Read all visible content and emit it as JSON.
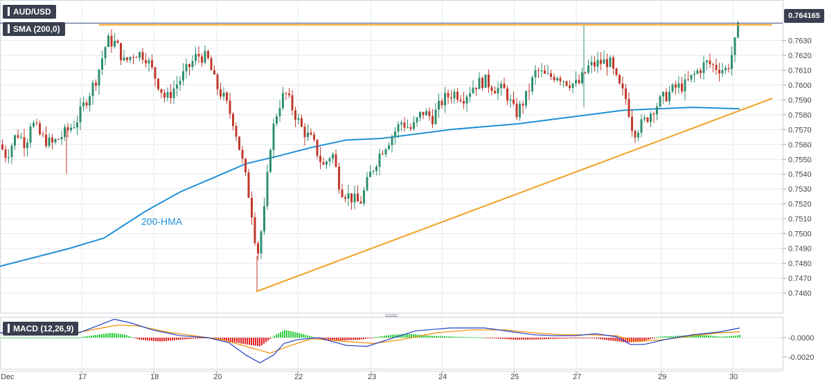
{
  "header": {
    "symbol": "AUD/USD",
    "indicator_label": "SMA (200,0)",
    "macd_label": "MACD (12,26,9)",
    "last_price": "0.764165"
  },
  "annotations": {
    "hma": "200-HMA"
  },
  "colors": {
    "background": "#ffffff",
    "grid": "#e6e8ee",
    "bull_candle": "#2f8f6f",
    "bear_candle": "#c0392b",
    "hma_line": "#1f8fd6",
    "trendline": "#f0a020",
    "hist_pos": "#2ecc40",
    "hist_neg": "#e02020",
    "macd_line": "#1f3fbf",
    "signal_line": "#f08a00",
    "tag_bg": "#3a3f4f"
  },
  "chart_data": [
    {
      "type": "candlestick",
      "title": "AUD/USD",
      "x_labels": [
        "Dec",
        "17",
        "18",
        "20",
        "22",
        "23",
        "24",
        "25",
        "27",
        "29",
        "30"
      ],
      "y_ticks": [
        "0.7460",
        "0.7470",
        "0.7480",
        "0.7490",
        "0.7500",
        "0.7510",
        "0.7520",
        "0.7530",
        "0.7540",
        "0.7550",
        "0.7560",
        "0.7570",
        "0.7580",
        "0.7590",
        "0.7600",
        "0.7610",
        "0.7620",
        "0.7630"
      ],
      "ylim": [
        0.745,
        0.765
      ],
      "grid": true,
      "last_price": 0.764165,
      "candle_anchors": [
        [
          0,
          0.756
        ],
        [
          10,
          0.7552
        ],
        [
          25,
          0.7568
        ],
        [
          38,
          0.756
        ],
        [
          45,
          0.7576
        ],
        [
          60,
          0.7565
        ],
        [
          75,
          0.756
        ],
        [
          95,
          0.7568
        ],
        [
          110,
          0.7575
        ],
        [
          125,
          0.759
        ],
        [
          140,
          0.7605
        ],
        [
          155,
          0.763
        ],
        [
          168,
          0.7628
        ],
        [
          180,
          0.7615
        ],
        [
          195,
          0.7622
        ],
        [
          210,
          0.762
        ],
        [
          225,
          0.7605
        ],
        [
          240,
          0.759
        ],
        [
          255,
          0.76
        ],
        [
          270,
          0.761
        ],
        [
          285,
          0.762
        ],
        [
          300,
          0.7618
        ],
        [
          312,
          0.76
        ],
        [
          325,
          0.759
        ],
        [
          338,
          0.7575
        ],
        [
          352,
          0.7545
        ],
        [
          363,
          0.7518
        ],
        [
          372,
          0.7485
        ],
        [
          382,
          0.7515
        ],
        [
          392,
          0.7565
        ],
        [
          402,
          0.7585
        ],
        [
          412,
          0.7595
        ],
        [
          422,
          0.7585
        ],
        [
          437,
          0.757
        ],
        [
          452,
          0.7562
        ],
        [
          467,
          0.7545
        ],
        [
          480,
          0.7555
        ],
        [
          492,
          0.753
        ],
        [
          505,
          0.7525
        ],
        [
          520,
          0.752
        ],
        [
          535,
          0.754
        ],
        [
          550,
          0.7555
        ],
        [
          565,
          0.7565
        ],
        [
          580,
          0.7575
        ],
        [
          595,
          0.757
        ],
        [
          610,
          0.7582
        ],
        [
          625,
          0.7578
        ],
        [
          640,
          0.759
        ],
        [
          655,
          0.7595
        ],
        [
          670,
          0.7592
        ],
        [
          685,
          0.76
        ],
        [
          700,
          0.7603
        ],
        [
          715,
          0.7598
        ],
        [
          730,
          0.7596
        ],
        [
          745,
          0.758
        ],
        [
          760,
          0.7592
        ],
        [
          775,
          0.761
        ],
        [
          790,
          0.7605
        ],
        [
          805,
          0.7607
        ],
        [
          820,
          0.7602
        ],
        [
          835,
          0.76
        ],
        [
          850,
          0.7612
        ],
        [
          865,
          0.7615
        ],
        [
          880,
          0.7616
        ],
        [
          893,
          0.76
        ],
        [
          905,
          0.759
        ],
        [
          915,
          0.7568
        ],
        [
          930,
          0.7575
        ],
        [
          945,
          0.7585
        ],
        [
          960,
          0.7592
        ],
        [
          975,
          0.7598
        ],
        [
          990,
          0.76
        ],
        [
          1005,
          0.7608
        ],
        [
          1020,
          0.7615
        ],
        [
          1035,
          0.7612
        ],
        [
          1050,
          0.761
        ],
        [
          1060,
          0.7625
        ],
        [
          1068,
          0.7642
        ]
      ],
      "series": [
        {
          "name": "200-HMA",
          "x": [
            0,
            50,
            100,
            150,
            210,
            260,
            310,
            355,
            400,
            450,
            500,
            550,
            600,
            650,
            700,
            750,
            800,
            850,
            900,
            950,
            1000,
            1068
          ],
          "values": [
            0.7478,
            0.7484,
            0.749,
            0.7497,
            0.7515,
            0.7528,
            0.7538,
            0.7547,
            0.7552,
            0.7558,
            0.7563,
            0.7564,
            0.7567,
            0.757,
            0.7572,
            0.7574,
            0.7577,
            0.758,
            0.7583,
            0.7584,
            0.7585,
            0.7584
          ]
        },
        {
          "name": "support trendline",
          "x": [
            370,
            1115
          ],
          "values": [
            0.7461,
            0.7591
          ]
        },
        {
          "name": "resistance line",
          "x": [
            143,
            1115
          ],
          "values": [
            0.76405,
            0.76405
          ]
        }
      ]
    },
    {
      "type": "macd",
      "title": "MACD (12,26,9)",
      "y_ticks": [
        "-0.0000",
        "-0.0020"
      ],
      "ylim": [
        -0.003,
        0.002
      ],
      "macd": {
        "x": [
          0,
          60,
          110,
          140,
          165,
          190,
          220,
          260,
          300,
          330,
          355,
          375,
          395,
          410,
          430,
          460,
          500,
          530,
          560,
          600,
          650,
          700,
          740,
          770,
          800,
          830,
          860,
          890,
          910,
          930,
          960,
          1000,
          1040,
          1068
        ],
        "values": [
          0.0005,
          0.0005,
          0.0004,
          0.0012,
          0.0019,
          0.0015,
          0.0008,
          0.0002,
          0.0,
          -0.0005,
          -0.0018,
          -0.0026,
          -0.0018,
          -0.0006,
          -0.0002,
          0.0,
          -0.0008,
          -0.0009,
          -0.0002,
          0.0007,
          0.001,
          0.001,
          0.0006,
          0.0003,
          0.0002,
          0.0002,
          0.0004,
          0.0001,
          -0.0007,
          -0.0007,
          -0.0002,
          0.0003,
          0.0006,
          0.001
        ]
      },
      "signal": {
        "x": [
          0,
          60,
          110,
          140,
          170,
          200,
          240,
          280,
          320,
          360,
          390,
          420,
          450,
          500,
          540,
          580,
          630,
          680,
          730,
          770,
          810,
          850,
          890,
          920,
          960,
          1000,
          1040,
          1068
        ],
        "values": [
          0.0005,
          0.0005,
          0.0005,
          0.0009,
          0.0013,
          0.0012,
          0.0006,
          0.0002,
          -0.0002,
          -0.001,
          -0.0016,
          -0.0008,
          -0.0001,
          -0.0004,
          -0.0006,
          -0.0002,
          0.0005,
          0.0008,
          0.0008,
          0.0005,
          0.0003,
          0.0003,
          0.0002,
          -0.0004,
          -0.0002,
          0.0002,
          0.0005,
          0.0006
        ]
      },
      "histogram": {
        "x": [
          0,
          110,
          130,
          160,
          180,
          200,
          230,
          260,
          300,
          330,
          355,
          375,
          395,
          410,
          430,
          460,
          490,
          520,
          545,
          565,
          590,
          620,
          660,
          700,
          740,
          770,
          810,
          850,
          880,
          905,
          925,
          950,
          980,
          1010,
          1040,
          1060,
          1068
        ],
        "values": [
          0.0,
          0.0,
          0.0002,
          0.0005,
          0.0003,
          -0.0002,
          -0.0004,
          -0.0002,
          0.0,
          -0.0004,
          -0.0007,
          -0.0009,
          0.0002,
          0.0008,
          0.0005,
          -0.0001,
          -0.0003,
          -0.0002,
          0.0001,
          0.0003,
          0.0004,
          0.0002,
          0.0001,
          0.0,
          -0.0002,
          -0.0002,
          -0.0001,
          0.0,
          -0.0003,
          -0.0005,
          -0.0004,
          0.0001,
          0.0002,
          0.0003,
          0.0001,
          0.0002,
          0.0003
        ]
      }
    }
  ]
}
